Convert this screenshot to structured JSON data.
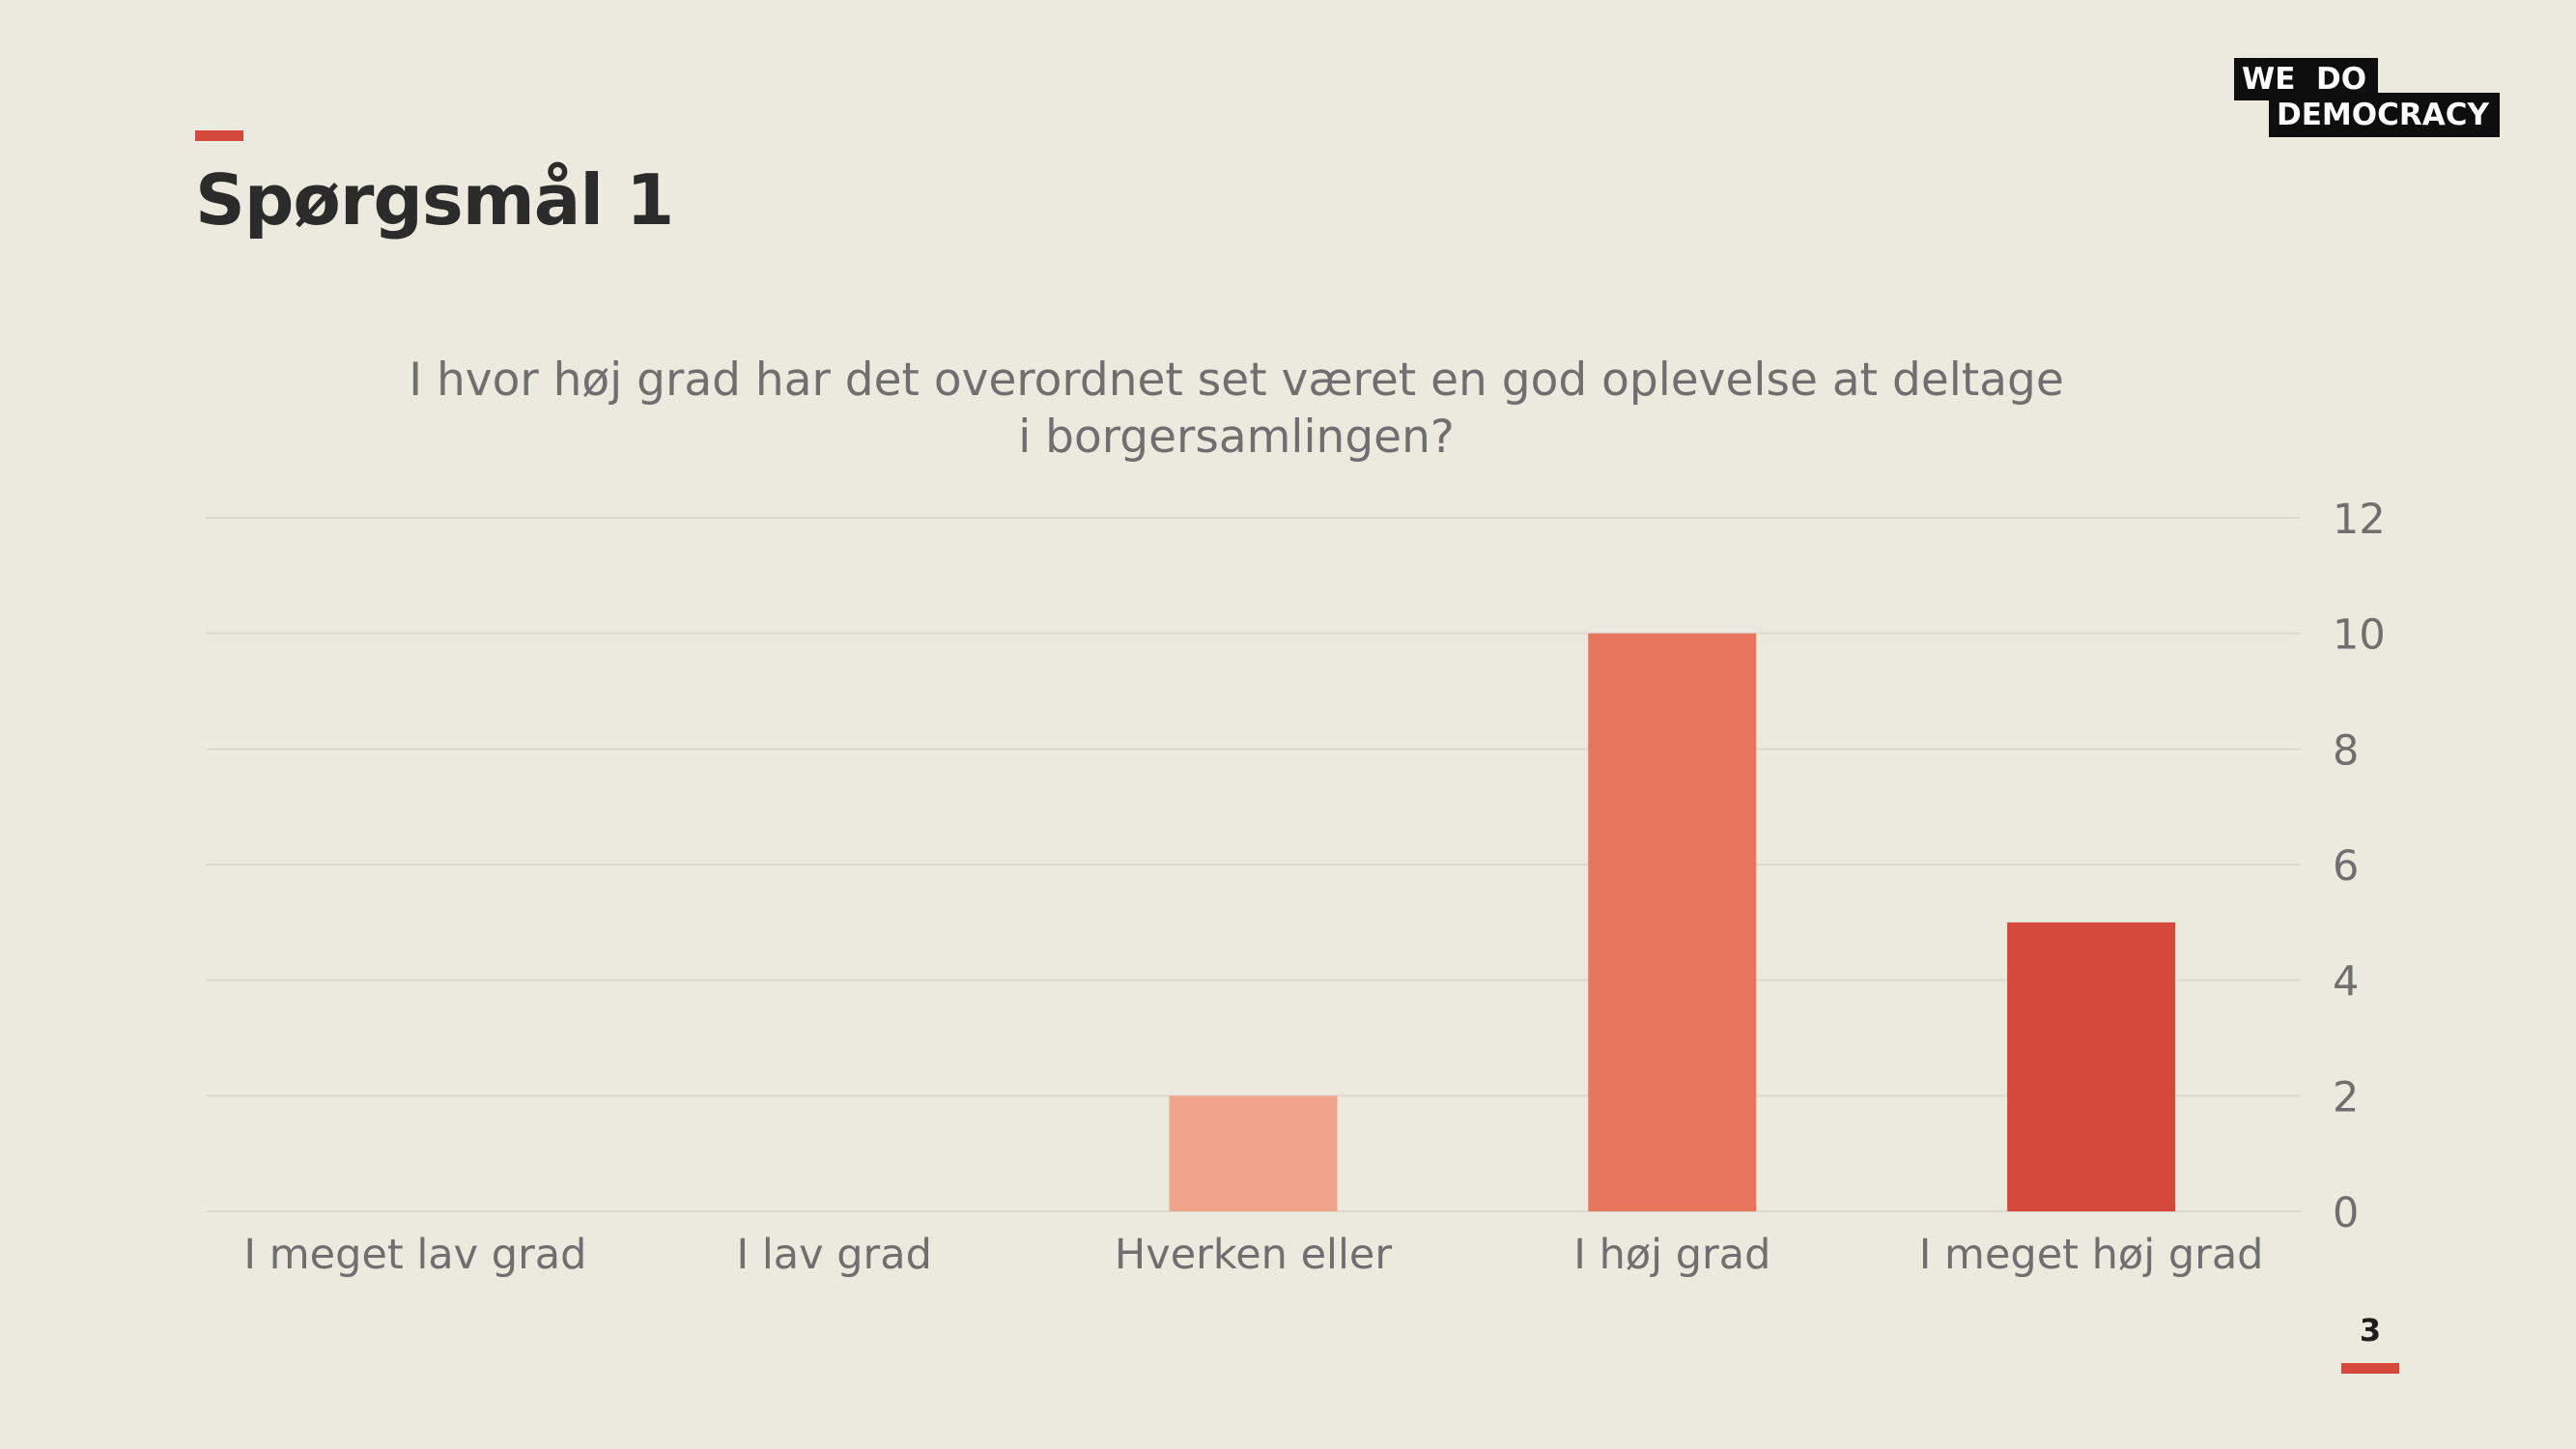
{
  "slide": {
    "title": "Spørgsmål 1",
    "page_number": "3"
  },
  "logo": {
    "line1": "WE  DO",
    "line2": "DEMOCRACY"
  },
  "colors": {
    "background": "#ECE9DF",
    "accent": "#D4493B",
    "gridline": "#DCD9D0",
    "axis_text": "#6F6F6F"
  },
  "chart_data": {
    "type": "bar",
    "title": "I hvor høj grad har det overordnet set været en god oplevelse at deltage i borgersamlingen?",
    "title_lines": [
      "I hvor høj grad har det overordnet set været en god oplevelse at deltage",
      "i borgersamlingen?"
    ],
    "categories": [
      "I meget lav grad",
      "I lav grad",
      "Hverken eller",
      "I høj grad",
      "I meget høj grad"
    ],
    "values": [
      0,
      0,
      2,
      10,
      5
    ],
    "bar_colors": [
      "#F0A58A",
      "#F0A58A",
      "#F0A58A",
      "#E8765C",
      "#D4493B"
    ],
    "ylim": [
      0,
      12
    ],
    "yticks": [
      0,
      2,
      4,
      6,
      8,
      10,
      12
    ],
    "y_axis_side": "right",
    "grid": true,
    "legend": false
  }
}
